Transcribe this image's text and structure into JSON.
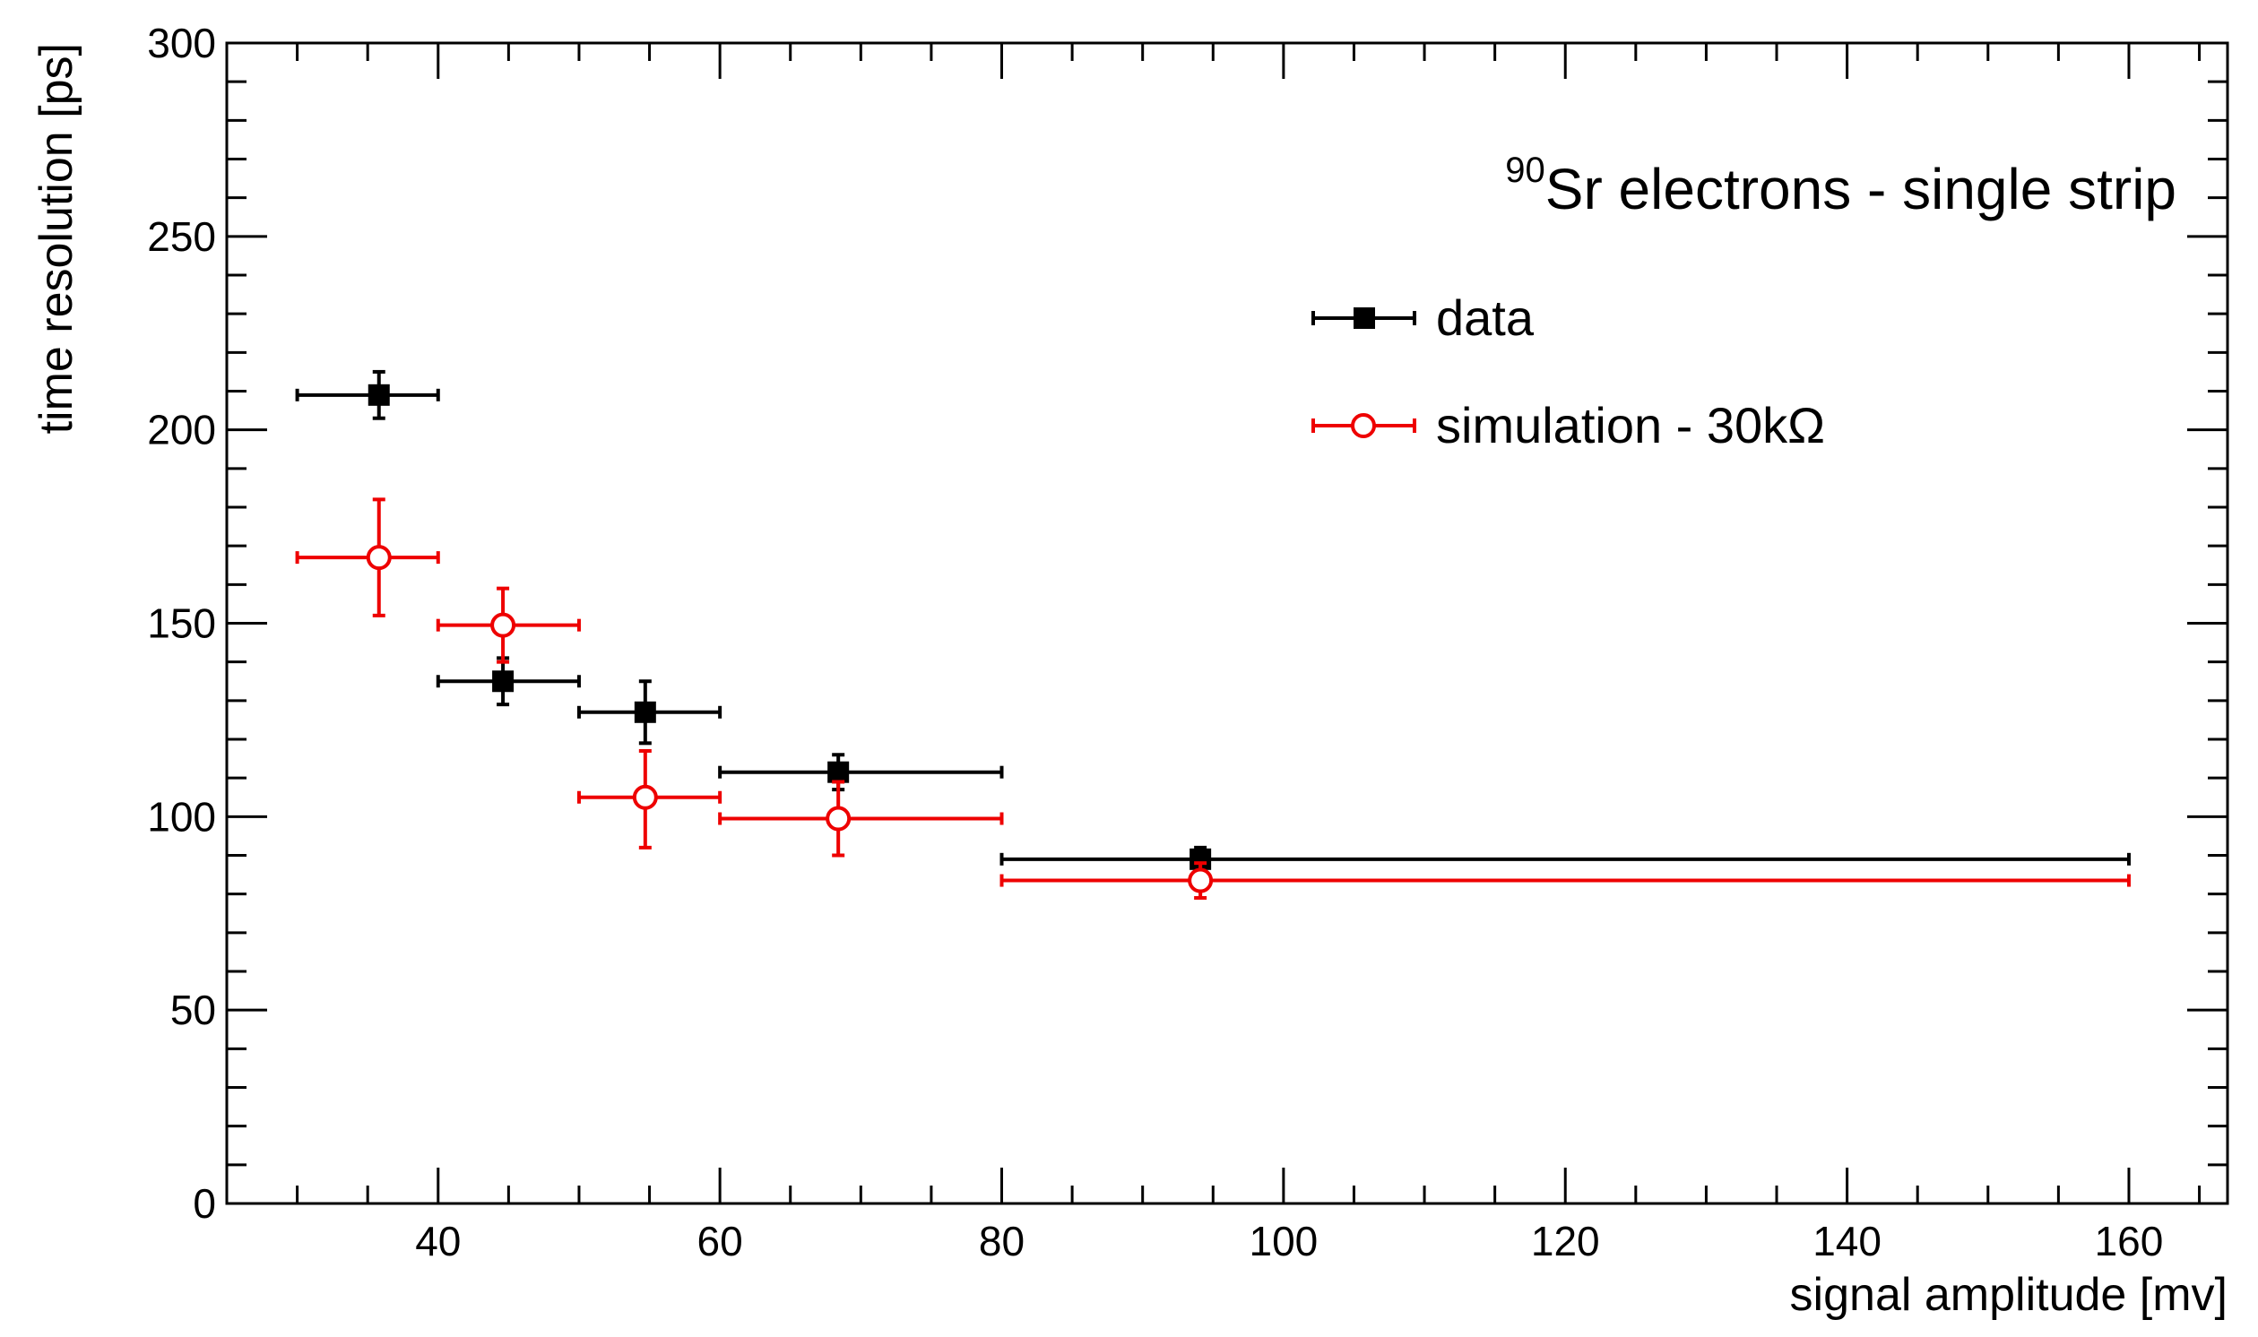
{
  "chart_data": {
    "type": "scatter",
    "title": "",
    "annotation": {
      "superscript": "90",
      "text": "Sr electrons - single strip"
    },
    "xlabel": "signal amplitude [mv]",
    "ylabel": "time resolution [ps]",
    "xlim": [
      25,
      167
    ],
    "ylim": [
      0,
      300
    ],
    "x_ticks": [
      40,
      60,
      80,
      100,
      120,
      140,
      160
    ],
    "y_ticks": [
      0,
      50,
      100,
      150,
      200,
      250,
      300
    ],
    "grid": false,
    "legend_position": "top-right",
    "series": [
      {
        "name": "data",
        "color": "#000000",
        "marker": "filled-square",
        "points": [
          {
            "x": 35.8,
            "y": 209,
            "xlo": 30,
            "xhi": 40,
            "ylo": 203,
            "yhi": 215
          },
          {
            "x": 44.6,
            "y": 135,
            "xlo": 40,
            "xhi": 50,
            "ylo": 129,
            "yhi": 141
          },
          {
            "x": 54.7,
            "y": 127,
            "xlo": 50,
            "xhi": 60,
            "ylo": 119,
            "yhi": 135
          },
          {
            "x": 68.4,
            "y": 111.5,
            "xlo": 60,
            "xhi": 80,
            "ylo": 107,
            "yhi": 116
          },
          {
            "x": 94.1,
            "y": 89,
            "xlo": 80,
            "xhi": 160,
            "ylo": 86,
            "yhi": 92
          }
        ]
      },
      {
        "name": "simulation - 30kΩ",
        "color": "#ee0000",
        "marker": "open-circle",
        "points": [
          {
            "x": 35.8,
            "y": 167,
            "xlo": 30,
            "xhi": 40,
            "ylo": 152,
            "yhi": 182
          },
          {
            "x": 44.6,
            "y": 149.5,
            "xlo": 40,
            "xhi": 50,
            "ylo": 140,
            "yhi": 159
          },
          {
            "x": 54.7,
            "y": 105,
            "xlo": 50,
            "xhi": 60,
            "ylo": 92,
            "yhi": 117
          },
          {
            "x": 68.4,
            "y": 99.5,
            "xlo": 60,
            "xhi": 80,
            "ylo": 90,
            "yhi": 109
          },
          {
            "x": 94.1,
            "y": 83.5,
            "xlo": 80,
            "xhi": 160,
            "ylo": 79,
            "yhi": 88
          }
        ]
      }
    ]
  }
}
